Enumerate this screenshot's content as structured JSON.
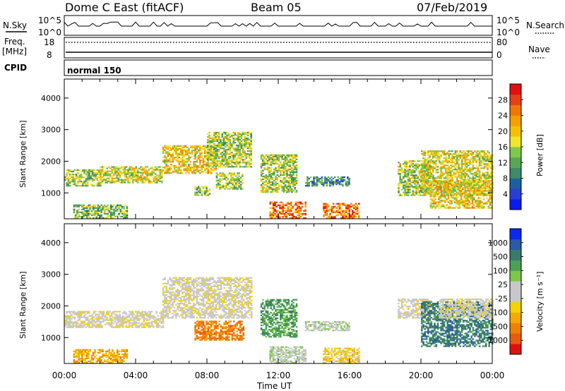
{
  "header": {
    "station": "Dome C East (fitACF)",
    "beam": "Beam 05",
    "date": "07/Feb/2019"
  },
  "top_panels": {
    "nsky_label": "N.Sky",
    "nsky_ticks": [
      "10^5",
      "10^0"
    ],
    "nsearch_label": "N.Search",
    "nsearch_ticks": [
      "10^5",
      "10^0"
    ],
    "freq_label": "Freq.",
    "freq_unit": "[MHz]",
    "freq_ticks": [
      "18",
      "8"
    ],
    "nave_label": "Nave",
    "nave_ticks": [
      "80",
      "0"
    ],
    "cpid_label": "CPID",
    "cpid_value": "normal 150"
  },
  "colors": {
    "power": [
      "#0a1bf0",
      "#2a3ed4",
      "#1f5fa0",
      "#3e8a6a",
      "#5aa655",
      "#7cc94b",
      "#f1e62a",
      "#f5c000",
      "#f5a000",
      "#f07800",
      "#e8401a",
      "#e01010"
    ],
    "velocity": [
      "#e01010",
      "#e85a10",
      "#f08000",
      "#f5a800",
      "#f5d200",
      "#c8c8c8",
      "#c8c8c8",
      "#7cc84a",
      "#4aa055",
      "#3a7a6a",
      "#2a5aa8",
      "#0a2af0"
    ]
  },
  "chart_data": [
    {
      "type": "heatmap",
      "name": "Power",
      "xlabel": "",
      "ylabel": "Slant Range [km]",
      "x_ticks": [
        "00:00",
        "04:00",
        "08:00",
        "12:00",
        "16:00",
        "20:00",
        "00:00"
      ],
      "y_ticks": [
        "1000",
        "2000",
        "3000",
        "4000"
      ],
      "xlim_hours": [
        0,
        24
      ],
      "ylim_km": [
        180,
        4600
      ],
      "colorbar_title": "Power [dB]",
      "colorbar_ticks": [
        "4",
        "8",
        "12",
        "16",
        "20",
        "24",
        "28"
      ],
      "colorbar_range": [
        0,
        32
      ],
      "echo_regions": [
        {
          "t0": 0.0,
          "t1": 2.0,
          "r0": 1200,
          "r1": 1700,
          "level": 14
        },
        {
          "t0": 2.0,
          "t1": 5.5,
          "r0": 1300,
          "r1": 1800,
          "level": 16
        },
        {
          "t0": 5.5,
          "t1": 8.5,
          "r0": 1600,
          "r1": 2500,
          "level": 18
        },
        {
          "t0": 8.0,
          "t1": 10.5,
          "r0": 1800,
          "r1": 2900,
          "level": 14
        },
        {
          "t0": 7.3,
          "t1": 8.2,
          "r0": 900,
          "r1": 1200,
          "level": 12
        },
        {
          "t0": 8.5,
          "t1": 10.0,
          "r0": 1100,
          "r1": 1600,
          "level": 14
        },
        {
          "t0": 11.0,
          "t1": 13.0,
          "r0": 1000,
          "r1": 2200,
          "level": 14
        },
        {
          "t0": 13.5,
          "t1": 16.0,
          "r0": 1200,
          "r1": 1500,
          "level": 8
        },
        {
          "t0": 11.5,
          "t1": 13.5,
          "r0": 180,
          "r1": 700,
          "level": 24
        },
        {
          "t0": 14.5,
          "t1": 16.5,
          "r0": 180,
          "r1": 650,
          "level": 24
        },
        {
          "t0": 0.5,
          "t1": 3.5,
          "r0": 180,
          "r1": 600,
          "level": 12
        },
        {
          "t0": 18.7,
          "t1": 20.5,
          "r0": 900,
          "r1": 2000,
          "level": 14
        },
        {
          "t0": 20.0,
          "t1": 24.0,
          "r0": 900,
          "r1": 2300,
          "level": 16
        },
        {
          "t0": 20.5,
          "t1": 24.0,
          "r0": 500,
          "r1": 1400,
          "level": 18
        }
      ]
    },
    {
      "type": "heatmap",
      "name": "Velocity",
      "xlabel": "Time UT",
      "ylabel": "Slant Range [km]",
      "x_ticks": [
        "00:00",
        "04:00",
        "08:00",
        "12:00",
        "16:00",
        "20:00",
        "00:00"
      ],
      "y_ticks": [
        "1000",
        "2000",
        "3000",
        "4000"
      ],
      "xlim_hours": [
        0,
        24
      ],
      "ylim_km": [
        180,
        4600
      ],
      "colorbar_title": "Velocity [m s⁻¹]",
      "colorbar_ticks": [
        "1000",
        "500",
        "100",
        "25",
        "-25",
        "-100",
        "-500",
        "-1000"
      ],
      "colorbar_range": [
        -1200,
        1200
      ],
      "echo_regions": [
        {
          "t0": 0.0,
          "t1": 5.5,
          "r0": 1300,
          "r1": 1800,
          "level": 5
        },
        {
          "t0": 5.5,
          "t1": 10.5,
          "r0": 1600,
          "r1": 2900,
          "level": 5
        },
        {
          "t0": 7.3,
          "t1": 10.0,
          "r0": 900,
          "r1": 1500,
          "level": 2
        },
        {
          "t0": 11.0,
          "t1": 13.0,
          "r0": 1000,
          "r1": 2200,
          "level": 8
        },
        {
          "t0": 13.5,
          "t1": 16.0,
          "r0": 1200,
          "r1": 1500,
          "level": 6
        },
        {
          "t0": 11.5,
          "t1": 13.5,
          "r0": 180,
          "r1": 700,
          "level": 6
        },
        {
          "t0": 14.5,
          "t1": 16.5,
          "r0": 180,
          "r1": 650,
          "level": 4
        },
        {
          "t0": 0.5,
          "t1": 3.5,
          "r0": 180,
          "r1": 600,
          "level": 3
        },
        {
          "t0": 18.7,
          "t1": 20.5,
          "r0": 1600,
          "r1": 2200,
          "level": 5
        },
        {
          "t0": 20.0,
          "t1": 24.0,
          "r0": 700,
          "r1": 2100,
          "level": 9
        },
        {
          "t0": 21.0,
          "t1": 24.0,
          "r0": 1600,
          "r1": 2200,
          "level": 5
        }
      ]
    }
  ]
}
